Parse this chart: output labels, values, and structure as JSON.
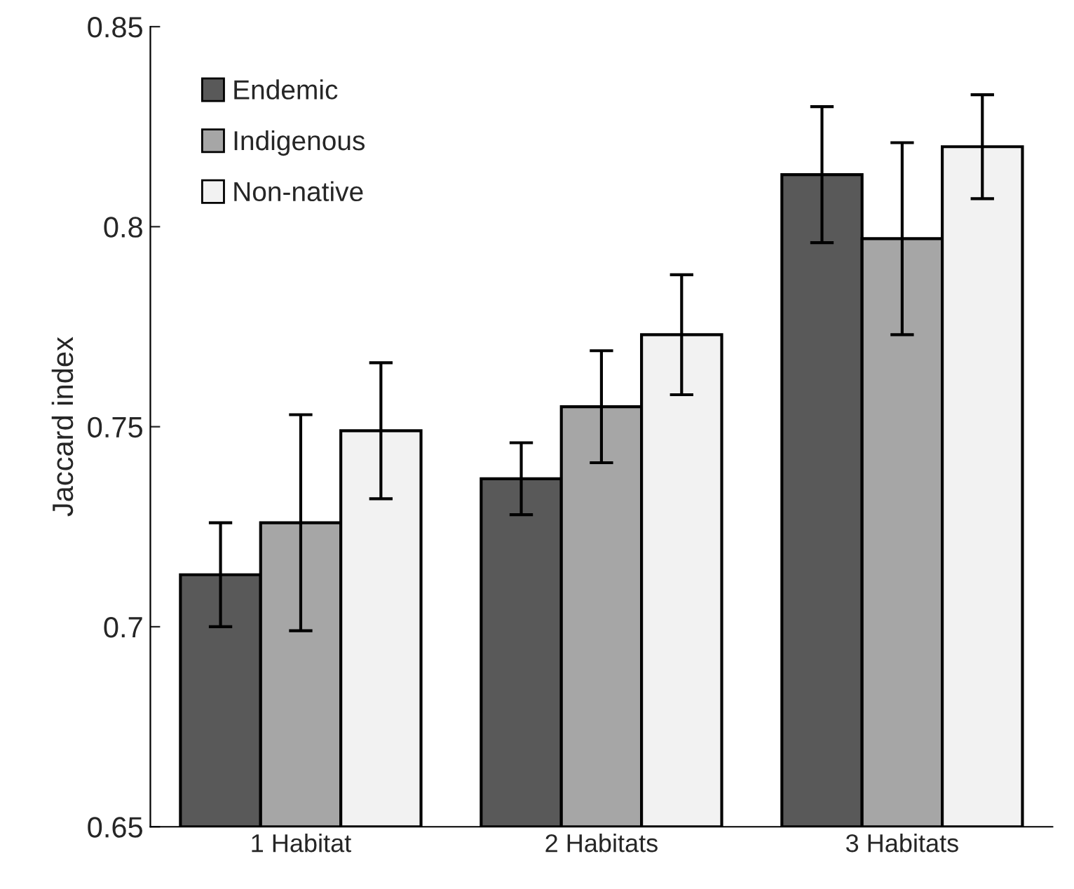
{
  "chart_data": {
    "type": "bar",
    "ylabel": "Jaccard index",
    "categories": [
      "1 Habitat",
      "2 Habitats",
      "3 Habitats"
    ],
    "series": [
      {
        "name": "Endemic",
        "color": "#595959",
        "values": [
          0.713,
          0.737,
          0.813
        ],
        "errors": [
          0.013,
          0.009,
          0.017
        ]
      },
      {
        "name": "Indigenous",
        "color": "#a6a6a6",
        "values": [
          0.726,
          0.755,
          0.797
        ],
        "errors": [
          0.027,
          0.014,
          0.024
        ]
      },
      {
        "name": "Non-native",
        "color": "#f2f2f2",
        "values": [
          0.749,
          0.773,
          0.82
        ],
        "errors": [
          0.017,
          0.015,
          0.013
        ]
      }
    ],
    "ylim": [
      0.65,
      0.85
    ],
    "yticks": [
      0.65,
      0.7,
      0.75,
      0.8,
      0.85
    ],
    "grid": false,
    "legend": "top left"
  }
}
